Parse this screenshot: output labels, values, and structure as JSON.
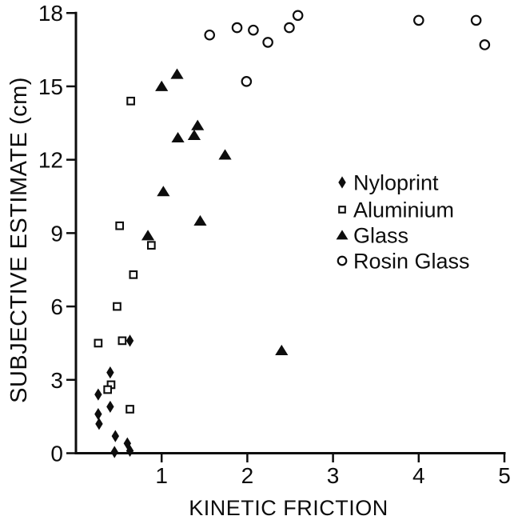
{
  "figure": {
    "ink_color": "#0d0d0d",
    "background_color": "#ffffff",
    "open_marker_fill": "#ffffff"
  },
  "chart_data": {
    "type": "scatter",
    "title": "",
    "xlabel": "KINETIC FRICTION",
    "ylabel": "SUBJECTIVE ESTIMATE (cm)",
    "xlim": [
      0,
      5
    ],
    "ylim": [
      0,
      18
    ],
    "x_ticks": [
      "1",
      "2",
      "3",
      "4",
      "5"
    ],
    "y_ticks": [
      "0",
      "3",
      "6",
      "9",
      "12",
      "15",
      "18"
    ],
    "grid": false,
    "legend_position": "middle-right",
    "series": [
      {
        "name": "Nyloprint",
        "marker": "filled-diamond",
        "points": [
          [
            0.63,
            4.6
          ],
          [
            0.4,
            3.3
          ],
          [
            0.26,
            2.4
          ],
          [
            0.4,
            1.9
          ],
          [
            0.26,
            1.6
          ],
          [
            0.27,
            1.2
          ],
          [
            0.46,
            0.7
          ],
          [
            0.45,
            0.05
          ],
          [
            0.6,
            0.4
          ],
          [
            0.63,
            0.1
          ]
        ]
      },
      {
        "name": "Aluminium",
        "marker": "open-square",
        "points": [
          [
            0.64,
            14.4
          ],
          [
            0.51,
            9.3
          ],
          [
            0.88,
            8.5
          ],
          [
            0.67,
            7.3
          ],
          [
            0.48,
            6.0
          ],
          [
            0.26,
            4.5
          ],
          [
            0.54,
            4.6
          ],
          [
            0.41,
            2.8
          ],
          [
            0.37,
            2.6
          ],
          [
            0.63,
            1.8
          ]
        ]
      },
      {
        "name": "Glass",
        "marker": "filled-triangle",
        "points": [
          [
            1.18,
            15.5
          ],
          [
            1.0,
            15.0
          ],
          [
            1.42,
            13.4
          ],
          [
            1.38,
            13.0
          ],
          [
            1.19,
            12.9
          ],
          [
            1.74,
            12.2
          ],
          [
            1.02,
            10.7
          ],
          [
            1.45,
            9.5
          ],
          [
            0.84,
            8.9
          ],
          [
            2.4,
            4.2
          ]
        ]
      },
      {
        "name": "Rosin Glass",
        "marker": "open-circle",
        "points": [
          [
            1.56,
            17.1
          ],
          [
            1.88,
            17.4
          ],
          [
            2.07,
            17.3
          ],
          [
            2.24,
            16.8
          ],
          [
            2.49,
            17.4
          ],
          [
            2.59,
            17.9
          ],
          [
            1.99,
            15.2
          ],
          [
            4.0,
            17.7
          ],
          [
            4.67,
            17.7
          ],
          [
            4.77,
            16.7
          ]
        ]
      }
    ]
  }
}
